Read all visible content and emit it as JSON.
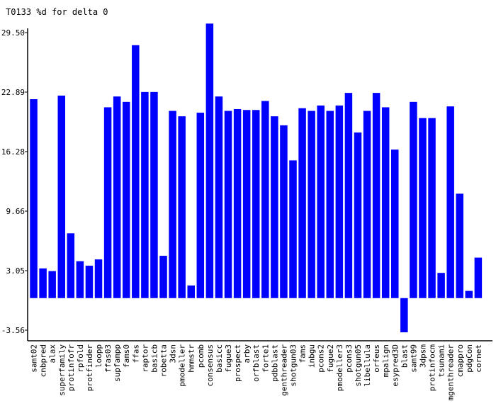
{
  "chart_data": {
    "type": "bar",
    "title": "T0133 %d for delta 0",
    "xlabel": "",
    "ylabel": "",
    "ylim": [
      -3.56,
      29.5
    ],
    "yticks": [
      "29.50",
      "22.89",
      "16.28",
      "9.66",
      "3.05",
      "-3.56"
    ],
    "bar_color": "#0000ff",
    "grid": false,
    "legend": "none",
    "categories": [
      "samt02",
      "cnbpred",
      "alax",
      "superfamily",
      "protinfofr",
      "rpfold",
      "protfinder",
      "loopp",
      "ffas03",
      "supfampp",
      "fams0",
      "ffas",
      "raptor",
      "basicb",
      "robetta",
      "3dsn",
      "pmodeller",
      "hmmstr",
      "pcomb",
      "consensus",
      "basicc",
      "fugue3",
      "prospect",
      "arby",
      "orfblast",
      "forte1",
      "pdbblast",
      "genthreader",
      "shotgun03",
      "fams",
      "inbgu",
      "pcons2",
      "fugue2",
      "pmodeller3",
      "pcons3",
      "shotgun05",
      "libellula",
      "orfeus",
      "mpalign",
      "esypred3D",
      "blast",
      "samt99",
      "3dpsm",
      "protinfocm",
      "tsunami",
      "mgenthreader",
      "cmappro",
      "pdgCon",
      "cornet"
    ],
    "values": [
      22.1,
      3.3,
      3.0,
      22.5,
      7.2,
      4.1,
      3.6,
      4.3,
      21.2,
      22.4,
      21.8,
      28.1,
      22.9,
      22.9,
      4.7,
      20.8,
      20.2,
      1.4,
      20.6,
      30.5,
      22.4,
      20.8,
      21.0,
      20.9,
      20.9,
      21.9,
      20.2,
      19.2,
      15.3,
      21.1,
      20.8,
      21.4,
      20.8,
      21.4,
      22.8,
      18.4,
      20.8,
      22.8,
      21.2,
      16.5,
      -3.8,
      21.8,
      20.0,
      20.0,
      2.8,
      21.3,
      11.6,
      0.8,
      4.5
    ]
  }
}
